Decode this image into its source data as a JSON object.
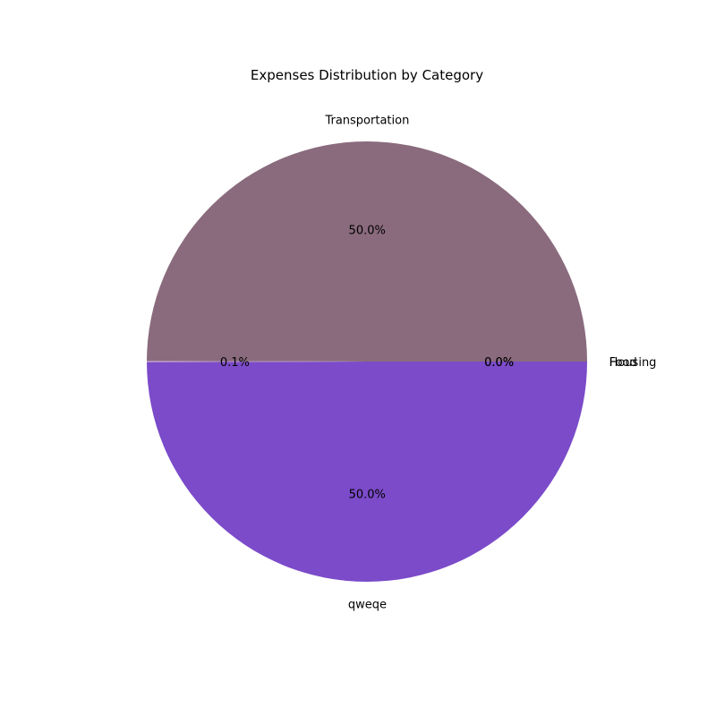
{
  "chart_data": {
    "type": "pie",
    "title": "Expenses Distribution by Category",
    "start_angle_deg": 0,
    "direction": "counterclockwise",
    "slices": [
      {
        "label": "Housing",
        "value": 0.001,
        "pct_label": "0.0%",
        "color": "#a98c7e"
      },
      {
        "label": "Food",
        "value": 0.001,
        "pct_label": "0.0%",
        "color": "#9bc3a0"
      },
      {
        "label": "Transportation",
        "value": 49.95,
        "pct_label": "50.0%",
        "color": "#8a6b7d"
      },
      {
        "label": "",
        "value": 0.1,
        "pct_label": "0.1%",
        "color": "#b48fc0"
      },
      {
        "label": "qweqe",
        "value": 49.95,
        "pct_label": "50.0%",
        "color": "#7b4bc9"
      }
    ]
  }
}
